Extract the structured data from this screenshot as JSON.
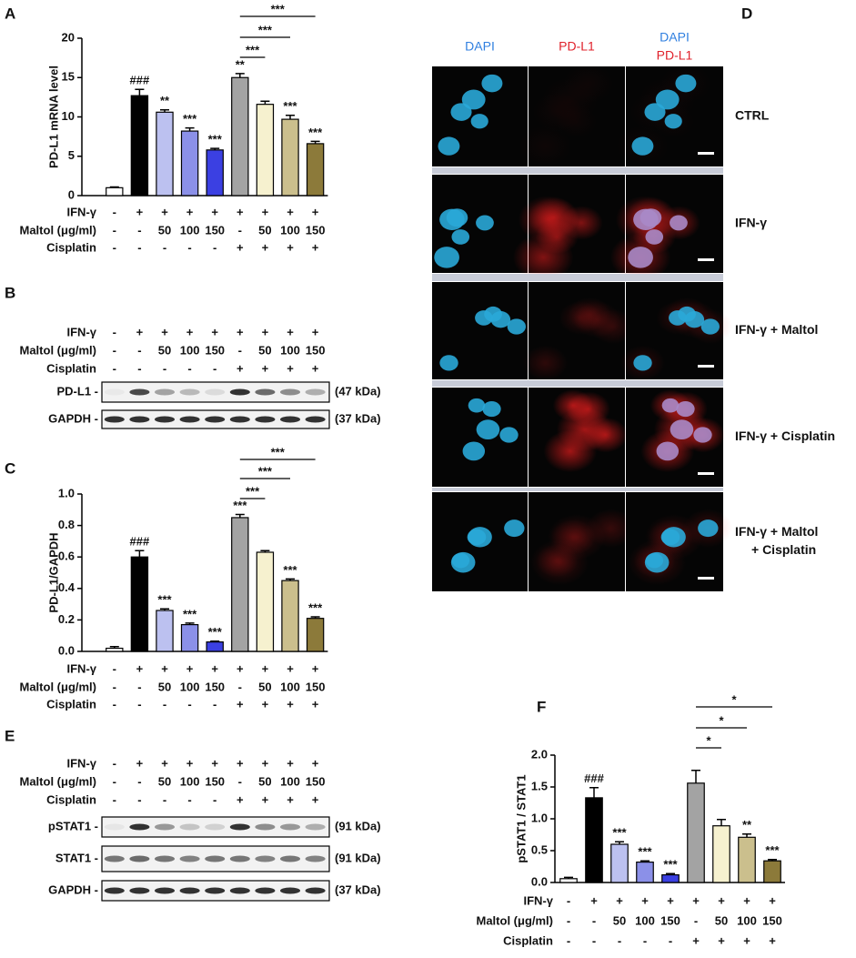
{
  "panel_labels": [
    "A",
    "B",
    "C",
    "D",
    "E",
    "F"
  ],
  "treatment_rows": {
    "labels": [
      "IFN-γ",
      "Maltol (μg/ml)",
      "Cisplatin"
    ],
    "values": [
      [
        "-",
        "+",
        "+",
        "+",
        "+",
        "+",
        "+",
        "+",
        "+"
      ],
      [
        "-",
        "-",
        50,
        100,
        150,
        "-",
        50,
        100,
        150
      ],
      [
        "-",
        "-",
        "-",
        "-",
        "-",
        "+",
        "+",
        "+",
        "+"
      ]
    ]
  },
  "chart_data": [
    {
      "type": "bar",
      "ylabel": "PD-L1 mRNA level",
      "values": [
        1.0,
        12.7,
        10.6,
        8.2,
        5.8,
        15.0,
        11.6,
        9.7,
        6.6
      ],
      "errors": [
        0.1,
        0.8,
        0.3,
        0.4,
        0.2,
        0.5,
        0.4,
        0.5,
        0.3
      ],
      "annotations": [
        null,
        "###",
        "**",
        "***",
        "***",
        "**",
        null,
        "***",
        "***"
      ],
      "colors": [
        "#ffffff",
        "#000000",
        "#bcc1f0",
        "#8b90e8",
        "#3b40e2",
        "#a3a3a3",
        "#f6f1cf",
        "#cbbf8d",
        "#8c7a3a"
      ],
      "ylim": [
        0,
        20
      ],
      "yticks": [
        0,
        5,
        10,
        15,
        20
      ],
      "brackets": [
        {
          "span": [
            5,
            8
          ],
          "label": "***"
        },
        {
          "span": [
            5,
            7
          ],
          "label": "***"
        },
        {
          "span": [
            5,
            6
          ],
          "label": "***"
        }
      ]
    },
    {
      "type": "bar",
      "ylabel": "PD-L1/GAPDH",
      "values": [
        0.02,
        0.6,
        0.26,
        0.17,
        0.06,
        0.85,
        0.63,
        0.45,
        0.21
      ],
      "errors": [
        0.01,
        0.04,
        0.01,
        0.01,
        0.005,
        0.02,
        0.01,
        0.01,
        0.01
      ],
      "annotations": [
        null,
        "###",
        "***",
        "***",
        "***",
        "***",
        null,
        "***",
        "***"
      ],
      "colors": [
        "#ffffff",
        "#000000",
        "#bcc1f0",
        "#8b90e8",
        "#3b40e2",
        "#a3a3a3",
        "#f6f1cf",
        "#cbbf8d",
        "#8c7a3a"
      ],
      "ylim": [
        0,
        1
      ],
      "yticks": [
        {
          "value": 0,
          "label": "0.0"
        },
        0.2,
        0.4,
        0.6,
        0.8,
        {
          "value": 1,
          "label": "1.0"
        }
      ],
      "brackets": [
        {
          "span": [
            5,
            8
          ],
          "label": "***"
        },
        {
          "span": [
            5,
            7
          ],
          "label": "***"
        },
        {
          "span": [
            5,
            6
          ],
          "label": "***"
        }
      ]
    },
    {
      "type": "bar",
      "ylabel": "pSTAT1 / STAT1",
      "values": [
        0.06,
        1.33,
        0.6,
        0.32,
        0.12,
        1.56,
        0.89,
        0.71,
        0.34
      ],
      "errors": [
        0.02,
        0.16,
        0.04,
        0.02,
        0.02,
        0.2,
        0.1,
        0.05,
        0.02
      ],
      "annotations": [
        null,
        "###",
        "***",
        "***",
        "***",
        null,
        null,
        "**",
        "***"
      ],
      "colors": [
        "#ffffff",
        "#000000",
        "#bcc1f0",
        "#8b90e8",
        "#3b40e2",
        "#a3a3a3",
        "#f6f1cf",
        "#cbbf8d",
        "#8c7a3a"
      ],
      "ylim": [
        0,
        2
      ],
      "yticks": [
        {
          "value": 0,
          "label": "0.0"
        },
        0.5,
        {
          "value": 1,
          "label": "1.0"
        },
        1.5,
        {
          "value": 2,
          "label": "2.0"
        }
      ],
      "brackets": [
        {
          "span": [
            5,
            8
          ],
          "label": "*"
        },
        {
          "span": [
            5,
            7
          ],
          "label": "*"
        },
        {
          "span": [
            5,
            6
          ],
          "label": "*"
        }
      ]
    }
  ],
  "blots": {
    "B": [
      {
        "label": "PD-L1 -",
        "size": "(47 kDa)"
      },
      {
        "label": "GAPDH -",
        "size": "(37 kDa)"
      }
    ],
    "E": [
      {
        "label": "pSTAT1 -",
        "size": "(91 kDa)"
      },
      {
        "label": "STAT1 -",
        "size": "(91 kDa)"
      },
      {
        "label": "GAPDH -",
        "size": "(37 kDa)"
      }
    ]
  },
  "microscopy": {
    "columns": [
      [
        "DAPI"
      ],
      [
        "PD-L1"
      ],
      [
        "DAPI",
        "PD-L1"
      ]
    ],
    "rows": [
      [
        "CTRL"
      ],
      [
        "IFN-γ"
      ],
      [
        "IFN-γ + Maltol"
      ],
      [
        "IFN-γ + Cisplatin"
      ],
      [
        "IFN-γ + Maltol",
        "+ Cisplatin"
      ]
    ]
  }
}
